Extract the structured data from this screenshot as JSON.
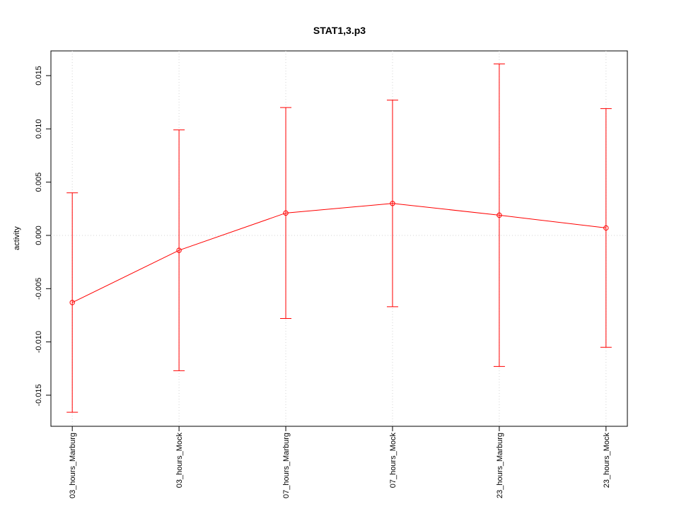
{
  "chart_data": {
    "type": "line",
    "title": "STAT1,3.p3",
    "y_label": "activity",
    "categories": [
      "03_hours_Marburg",
      "03_hours_Mock",
      "07_hours_Marburg",
      "07_hours_Mock",
      "23_hours_Marburg",
      "23_hours_Mock"
    ],
    "series": [
      {
        "color": "#ff0000",
        "values": [
          -0.0063,
          -0.0014,
          0.0021,
          0.003,
          0.0019,
          0.0007
        ],
        "errors": [
          0.0103,
          0.0113,
          0.0099,
          0.0097,
          0.0142,
          0.0112
        ]
      }
    ],
    "ylim": [
      -0.01792,
      0.01732
    ],
    "yticks": [
      -0.015,
      {
        "value": -0.01,
        "label": "-0.010"
      },
      -0.005,
      {
        "value": 0,
        "label": "0.000"
      },
      0.005,
      {
        "value": 0.01,
        "label": "0.010"
      },
      0.015
    ],
    "grid": true,
    "hline": 0
  }
}
